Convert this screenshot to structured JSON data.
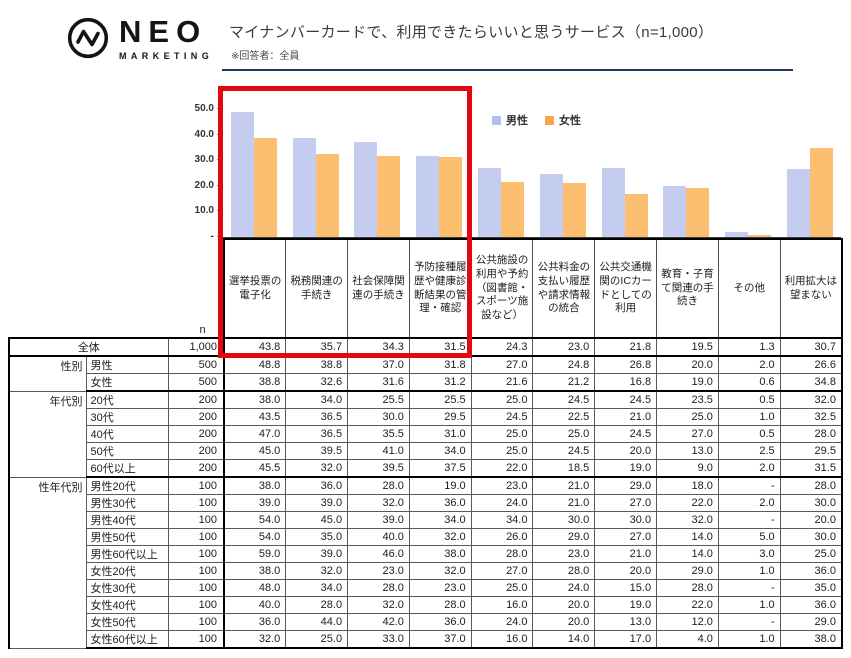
{
  "header": {
    "logo_text": "NEO",
    "logo_sub": "MARKETING",
    "title": "マイナンバーカードで、利用できたらいいと思うサービス（n=1,000）",
    "note": "※回答者：全員"
  },
  "colors": {
    "male_bar": "#c4cdf0",
    "female_bar": "#fbbf6f",
    "legend_male": "#b3c0ea",
    "legend_female": "#f3a64b",
    "highlight_box": "#e30613",
    "title_rule": "#1f3864",
    "axis": "#3d3d3d"
  },
  "chart_data": {
    "type": "bar",
    "title": "マイナンバーカードで、利用できたらいいと思うサービス（n=1,000）",
    "categories": [
      "選挙投票の電子化",
      "税務関連の手続き",
      "社会保障関連の手続き",
      "予防接種履歴や健康診断結果の管理・確認",
      "公共施設の利用や予約（図書館・スポーツ施設など）",
      "公共料金の支払い履歴や請求情報の統合",
      "公共交通機関のICカードとしての利用",
      "教育・子育て関連の手続き",
      "その他",
      "利用拡大は望まない"
    ],
    "series": [
      {
        "name": "男性",
        "values": [
          48.8,
          38.8,
          37.0,
          31.8,
          27.0,
          24.8,
          26.8,
          20.0,
          2.0,
          26.6
        ]
      },
      {
        "name": "女性",
        "values": [
          38.8,
          32.6,
          31.6,
          31.2,
          21.6,
          21.2,
          16.8,
          19.0,
          0.6,
          34.8
        ]
      }
    ],
    "ylim": [
      0,
      53.5
    ],
    "ytick_values": [
      50,
      40,
      30,
      20,
      10,
      0
    ],
    "ytick_labels": [
      "50.0",
      "40.0",
      "30.0",
      "20.0",
      "10.0",
      "-"
    ],
    "grid": false,
    "legend_position": "top-right",
    "highlighted_categories": [
      0,
      1,
      2,
      3
    ]
  },
  "table": {
    "n_label": "n",
    "columns": [
      "選挙投票の電子化",
      "税務関連の手続き",
      "社会保障関連の手続き",
      "予防接種履歴や健康診断結果の管理・確認",
      "公共施設の利用や予約（図書館・スポーツ施設など）",
      "公共料金の支払い履歴や請求情報の統合",
      "公共交通機関のICカードとしての利用",
      "教育・子育て関連の手続き",
      "その他",
      "利用拡大は望まない"
    ],
    "rows": [
      {
        "merged": true,
        "label": "全体",
        "n": "1,000",
        "values": [
          "43.8",
          "35.7",
          "34.3",
          "31.5",
          "24.3",
          "23.0",
          "21.8",
          "19.5",
          "1.3",
          "30.7"
        ],
        "section_end": true
      },
      {
        "group": "性別",
        "span": 2,
        "label": "男性",
        "n": "500",
        "values": [
          "48.8",
          "38.8",
          "37.0",
          "31.8",
          "27.0",
          "24.8",
          "26.8",
          "20.0",
          "2.0",
          "26.6"
        ]
      },
      {
        "label": "女性",
        "n": "500",
        "values": [
          "38.8",
          "32.6",
          "31.6",
          "31.2",
          "21.6",
          "21.2",
          "16.8",
          "19.0",
          "0.6",
          "34.8"
        ],
        "section_end": true
      },
      {
        "group": "年代別",
        "span": 5,
        "label": "20代",
        "n": "200",
        "values": [
          "38.0",
          "34.0",
          "25.5",
          "25.5",
          "25.0",
          "24.5",
          "24.5",
          "23.5",
          "0.5",
          "32.0"
        ]
      },
      {
        "label": "30代",
        "n": "200",
        "values": [
          "43.5",
          "36.5",
          "30.0",
          "29.5",
          "24.5",
          "22.5",
          "21.0",
          "25.0",
          "1.0",
          "32.5"
        ]
      },
      {
        "label": "40代",
        "n": "200",
        "values": [
          "47.0",
          "36.5",
          "35.5",
          "31.0",
          "25.0",
          "25.0",
          "24.5",
          "27.0",
          "0.5",
          "28.0"
        ]
      },
      {
        "label": "50代",
        "n": "200",
        "values": [
          "45.0",
          "39.5",
          "41.0",
          "34.0",
          "25.0",
          "24.5",
          "20.0",
          "13.0",
          "2.5",
          "29.5"
        ]
      },
      {
        "label": "60代以上",
        "n": "200",
        "values": [
          "45.5",
          "32.0",
          "39.5",
          "37.5",
          "22.0",
          "18.5",
          "19.0",
          "9.0",
          "2.0",
          "31.5"
        ],
        "section_end": true
      },
      {
        "group": "性年代別",
        "span": 10,
        "label": "男性20代",
        "n": "100",
        "values": [
          "38.0",
          "36.0",
          "28.0",
          "19.0",
          "23.0",
          "21.0",
          "29.0",
          "18.0",
          "-",
          "28.0"
        ]
      },
      {
        "label": "男性30代",
        "n": "100",
        "values": [
          "39.0",
          "39.0",
          "32.0",
          "36.0",
          "24.0",
          "21.0",
          "27.0",
          "22.0",
          "2.0",
          "30.0"
        ]
      },
      {
        "label": "男性40代",
        "n": "100",
        "values": [
          "54.0",
          "45.0",
          "39.0",
          "34.0",
          "34.0",
          "30.0",
          "30.0",
          "32.0",
          "-",
          "20.0"
        ]
      },
      {
        "label": "男性50代",
        "n": "100",
        "values": [
          "54.0",
          "35.0",
          "40.0",
          "32.0",
          "26.0",
          "29.0",
          "27.0",
          "14.0",
          "5.0",
          "30.0"
        ]
      },
      {
        "label": "男性60代以上",
        "n": "100",
        "values": [
          "59.0",
          "39.0",
          "46.0",
          "38.0",
          "28.0",
          "23.0",
          "21.0",
          "14.0",
          "3.0",
          "25.0"
        ]
      },
      {
        "label": "女性20代",
        "n": "100",
        "values": [
          "38.0",
          "32.0",
          "23.0",
          "32.0",
          "27.0",
          "28.0",
          "20.0",
          "29.0",
          "1.0",
          "36.0"
        ]
      },
      {
        "label": "女性30代",
        "n": "100",
        "values": [
          "48.0",
          "34.0",
          "28.0",
          "23.0",
          "25.0",
          "24.0",
          "15.0",
          "28.0",
          "-",
          "35.0"
        ]
      },
      {
        "label": "女性40代",
        "n": "100",
        "values": [
          "40.0",
          "28.0",
          "32.0",
          "28.0",
          "16.0",
          "20.0",
          "19.0",
          "22.0",
          "1.0",
          "36.0"
        ]
      },
      {
        "label": "女性50代",
        "n": "100",
        "values": [
          "36.0",
          "44.0",
          "42.0",
          "36.0",
          "24.0",
          "20.0",
          "13.0",
          "12.0",
          "-",
          "29.0"
        ]
      },
      {
        "label": "女性60代以上",
        "n": "100",
        "values": [
          "32.0",
          "25.0",
          "33.0",
          "37.0",
          "16.0",
          "14.0",
          "17.0",
          "4.0",
          "1.0",
          "38.0"
        ],
        "section_end": true
      }
    ]
  }
}
